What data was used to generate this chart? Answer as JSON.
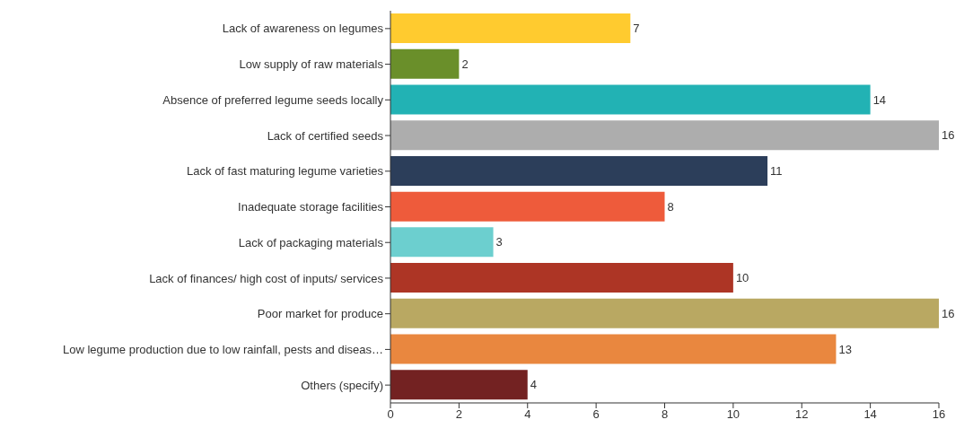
{
  "chart_data": {
    "type": "bar",
    "orientation": "horizontal",
    "categories": [
      "Lack of awareness on legumes",
      "Low supply of raw materials",
      "Absence of preferred legume seeds locally",
      "Lack of certified seeds",
      "Lack of fast maturing legume varieties",
      "Inadequate storage facilities",
      "Lack of packaging materials",
      "Lack of finances/ high cost of inputs/ services",
      "Poor market for produce",
      "Low legume production due to low rainfall, pests and diseas…",
      "Others (specify)"
    ],
    "values": [
      7,
      2,
      14,
      16,
      11,
      8,
      3,
      10,
      16,
      13,
      4
    ],
    "colors": [
      "#ffcb2f",
      "#6a8f2a",
      "#22b2b4",
      "#adadad",
      "#2c3e5a",
      "#ee5b3b",
      "#6ccfcf",
      "#ad3525",
      "#b9a862",
      "#e9873f",
      "#732222"
    ],
    "xlim": [
      0,
      16
    ],
    "xticks": [
      0,
      2,
      4,
      6,
      8,
      10,
      12,
      14,
      16
    ],
    "grid": false,
    "data_labels": true
  }
}
